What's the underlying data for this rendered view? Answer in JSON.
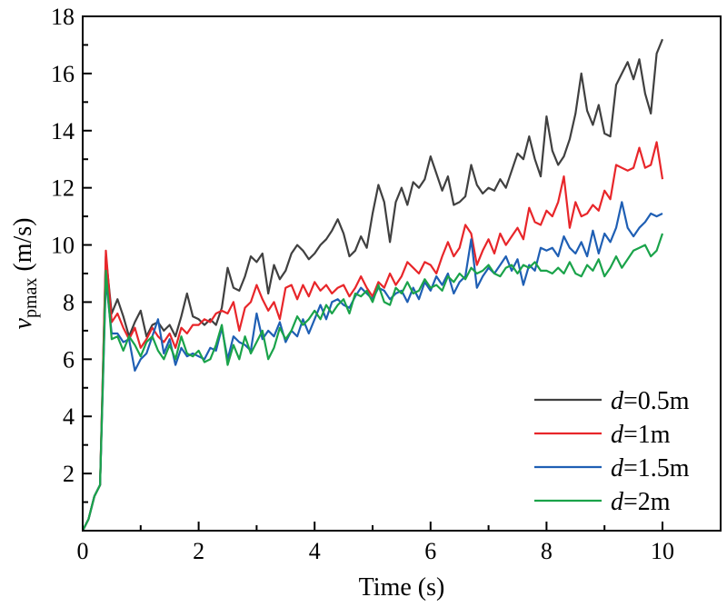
{
  "chart_data": {
    "type": "line",
    "xlabel": "Time (s)",
    "ylabel": {
      "var": "v",
      "sub": "pmax",
      "unit": " (m/s)"
    },
    "xlim": [
      0,
      10.5
    ],
    "ylim": [
      0,
      18
    ],
    "xticks": [
      0,
      2,
      4,
      6,
      8,
      10
    ],
    "yticks": [
      2,
      4,
      6,
      8,
      10,
      12,
      14,
      16,
      18
    ],
    "legend_position": "bottom-right",
    "x": [
      0,
      0.1,
      0.2,
      0.3,
      0.4,
      0.5,
      0.6,
      0.7,
      0.8,
      0.9,
      1.0,
      1.1,
      1.2,
      1.3,
      1.4,
      1.5,
      1.6,
      1.7,
      1.8,
      1.9,
      2.0,
      2.1,
      2.2,
      2.3,
      2.4,
      2.5,
      2.6,
      2.7,
      2.8,
      2.9,
      3.0,
      3.1,
      3.2,
      3.3,
      3.4,
      3.5,
      3.6,
      3.7,
      3.8,
      3.9,
      4.0,
      4.1,
      4.2,
      4.3,
      4.4,
      4.5,
      4.6,
      4.7,
      4.8,
      4.9,
      5.0,
      5.1,
      5.2,
      5.3,
      5.4,
      5.5,
      5.6,
      5.7,
      5.8,
      5.9,
      6.0,
      6.1,
      6.2,
      6.3,
      6.4,
      6.5,
      6.6,
      6.7,
      6.8,
      6.9,
      7.0,
      7.1,
      7.2,
      7.3,
      7.4,
      7.5,
      7.6,
      7.7,
      7.8,
      7.9,
      8.0,
      8.1,
      8.2,
      8.3,
      8.4,
      8.5,
      8.6,
      8.7,
      8.8,
      8.9,
      9.0,
      9.1,
      9.2,
      9.3,
      9.4,
      9.5,
      9.6,
      9.7,
      9.8,
      9.9,
      10.0
    ],
    "series": [
      {
        "name": "d=0.5m",
        "prefix": "d",
        "suffix": "=0.5m",
        "color": "#404040",
        "values": [
          0,
          0.4,
          1.2,
          1.6,
          9.6,
          7.6,
          8.1,
          7.5,
          6.8,
          7.3,
          7.7,
          6.8,
          7.2,
          7.3,
          7.0,
          7.2,
          6.8,
          7.5,
          8.3,
          7.5,
          7.4,
          7.2,
          7.4,
          7.2,
          7.8,
          9.2,
          8.5,
          8.4,
          8.9,
          9.6,
          9.4,
          9.7,
          8.3,
          9.3,
          8.8,
          9.1,
          9.7,
          10.0,
          9.8,
          9.5,
          9.7,
          10.0,
          10.2,
          10.5,
          10.9,
          10.4,
          9.6,
          9.8,
          10.3,
          9.9,
          11.1,
          12.1,
          11.5,
          10.1,
          11.5,
          12.0,
          11.4,
          12.2,
          12.0,
          12.3,
          13.1,
          12.5,
          11.9,
          12.4,
          11.4,
          11.5,
          11.7,
          12.8,
          12.1,
          11.8,
          12.0,
          11.9,
          12.3,
          12.0,
          12.6,
          13.2,
          13.0,
          13.8,
          13.0,
          12.4,
          14.5,
          13.3,
          12.8,
          13.1,
          13.7,
          14.6,
          16.0,
          14.7,
          14.2,
          14.9,
          13.9,
          13.8,
          15.6,
          16.0,
          16.4,
          15.8,
          16.5,
          15.3,
          14.6,
          16.7,
          17.2
        ]
      },
      {
        "name": "d=1m",
        "prefix": "d",
        "suffix": "=1m",
        "color": "#e8262a",
        "values": [
          0,
          0.4,
          1.2,
          1.6,
          9.8,
          7.3,
          7.6,
          7.1,
          6.7,
          7.1,
          6.4,
          6.7,
          7.1,
          6.8,
          6.6,
          6.9,
          6.4,
          7.1,
          6.9,
          7.2,
          7.2,
          7.4,
          7.3,
          7.6,
          7.7,
          7.6,
          8.0,
          7.0,
          7.8,
          8.0,
          8.6,
          8.1,
          7.7,
          8.0,
          7.4,
          8.5,
          8.6,
          8.1,
          8.6,
          8.2,
          8.7,
          8.4,
          8.6,
          8.3,
          8.5,
          8.6,
          8.2,
          8.5,
          8.9,
          8.5,
          8.2,
          8.7,
          8.5,
          9.0,
          8.6,
          8.9,
          9.4,
          9.2,
          9.0,
          9.4,
          9.3,
          9.0,
          9.6,
          10.1,
          9.6,
          9.9,
          10.7,
          10.4,
          9.3,
          9.8,
          10.2,
          9.7,
          10.4,
          10.0,
          10.3,
          10.6,
          10.2,
          11.3,
          10.8,
          10.7,
          11.2,
          11.0,
          11.5,
          12.4,
          10.6,
          11.5,
          11.0,
          11.1,
          11.4,
          11.2,
          11.9,
          11.6,
          12.8,
          12.7,
          12.6,
          12.7,
          13.4,
          12.7,
          12.8,
          13.6,
          12.3
        ]
      },
      {
        "name": "d=1.5m",
        "prefix": "d",
        "suffix": "=1.5m",
        "color": "#1f5fb4",
        "values": [
          0,
          0.4,
          1.2,
          1.6,
          8.8,
          6.9,
          6.9,
          6.6,
          6.7,
          5.6,
          6.0,
          6.2,
          6.8,
          7.4,
          6.2,
          6.7,
          5.8,
          6.4,
          6.1,
          6.2,
          6.1,
          6.0,
          6.4,
          6.3,
          7.1,
          6.0,
          6.8,
          6.6,
          6.5,
          6.3,
          7.6,
          6.7,
          7.0,
          6.8,
          7.3,
          6.6,
          7.0,
          6.8,
          7.4,
          6.9,
          7.4,
          7.9,
          7.4,
          8.0,
          8.1,
          7.9,
          7.8,
          8.2,
          8.5,
          8.3,
          8.1,
          8.5,
          8.4,
          8.1,
          8.3,
          8.4,
          8.0,
          8.5,
          8.1,
          8.7,
          8.4,
          8.9,
          8.6,
          9.0,
          8.3,
          8.7,
          8.9,
          10.2,
          8.5,
          8.9,
          9.2,
          9.0,
          9.3,
          9.6,
          9.1,
          9.5,
          8.6,
          9.3,
          9.1,
          9.9,
          9.8,
          9.9,
          9.6,
          10.3,
          9.9,
          9.7,
          10.1,
          9.6,
          10.5,
          9.7,
          10.4,
          10.1,
          10.6,
          11.5,
          10.6,
          10.3,
          10.6,
          10.8,
          11.1,
          11.0,
          11.1
        ]
      },
      {
        "name": "d=2m",
        "prefix": "d",
        "suffix": "=2m",
        "color": "#1aa34a",
        "values": [
          0,
          0.4,
          1.2,
          1.6,
          9.1,
          6.7,
          6.8,
          6.3,
          6.8,
          6.5,
          6.1,
          6.6,
          6.8,
          6.3,
          6.0,
          6.5,
          6.0,
          6.8,
          6.2,
          6.1,
          6.3,
          5.9,
          6.0,
          6.5,
          7.2,
          5.8,
          6.5,
          6.0,
          6.8,
          6.2,
          6.6,
          7.0,
          6.0,
          6.4,
          7.1,
          6.7,
          7.0,
          7.5,
          7.2,
          7.4,
          7.7,
          7.4,
          7.9,
          7.6,
          7.9,
          8.1,
          7.6,
          8.3,
          8.2,
          8.4,
          8.0,
          8.6,
          8.0,
          7.9,
          8.5,
          8.3,
          8.7,
          8.3,
          8.4,
          8.8,
          8.5,
          8.6,
          8.4,
          8.9,
          8.7,
          9.0,
          8.8,
          9.2,
          9.0,
          9.1,
          9.3,
          9.0,
          8.9,
          9.2,
          9.3,
          9.0,
          9.3,
          9.2,
          9.4,
          9.1,
          9.1,
          9.0,
          9.2,
          9.0,
          9.4,
          9.0,
          8.9,
          9.3,
          9.1,
          9.5,
          8.9,
          9.2,
          9.6,
          9.2,
          9.5,
          9.8,
          9.9,
          10.0,
          9.6,
          9.8,
          10.4
        ]
      }
    ]
  }
}
